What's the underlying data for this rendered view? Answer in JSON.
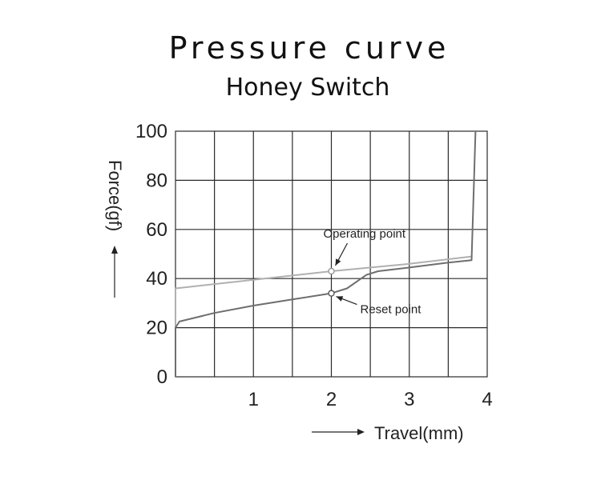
{
  "chart_data": {
    "type": "line",
    "title": "Pressure curve",
    "subtitle": "Honey Switch",
    "xlabel": "Travel(mm)",
    "ylabel": "Force(gf)",
    "xlim": [
      0,
      4
    ],
    "ylim": [
      0,
      100
    ],
    "x_ticks": [
      1,
      2,
      3,
      4
    ],
    "y_ticks": [
      0,
      20,
      40,
      60,
      80,
      100
    ],
    "x_grid_step": 0.5,
    "y_grid_step": 20,
    "grid": true,
    "series": [
      {
        "color": "#b0b0b0",
        "points": [
          [
            0,
            20
          ],
          [
            0,
            36
          ],
          [
            1,
            39.5
          ],
          [
            2,
            43
          ],
          [
            3,
            46
          ],
          [
            3.8,
            49
          ]
        ]
      },
      {
        "color": "#6e6e6e",
        "points": [
          [
            0,
            0
          ],
          [
            0,
            20
          ],
          [
            0.05,
            22.5
          ],
          [
            0.5,
            26
          ],
          [
            1,
            29
          ],
          [
            1.5,
            31.5
          ],
          [
            2,
            34
          ],
          [
            2.2,
            36
          ],
          [
            2.45,
            41.5
          ],
          [
            2.6,
            43
          ],
          [
            3,
            44.5
          ],
          [
            3.5,
            46.5
          ],
          [
            3.8,
            47.5
          ],
          [
            3.85,
            100
          ]
        ]
      }
    ],
    "annotations": [
      {
        "label": "Operating point",
        "x": 2,
        "y": 43
      },
      {
        "label": "Reset point",
        "x": 2,
        "y": 34
      }
    ]
  }
}
